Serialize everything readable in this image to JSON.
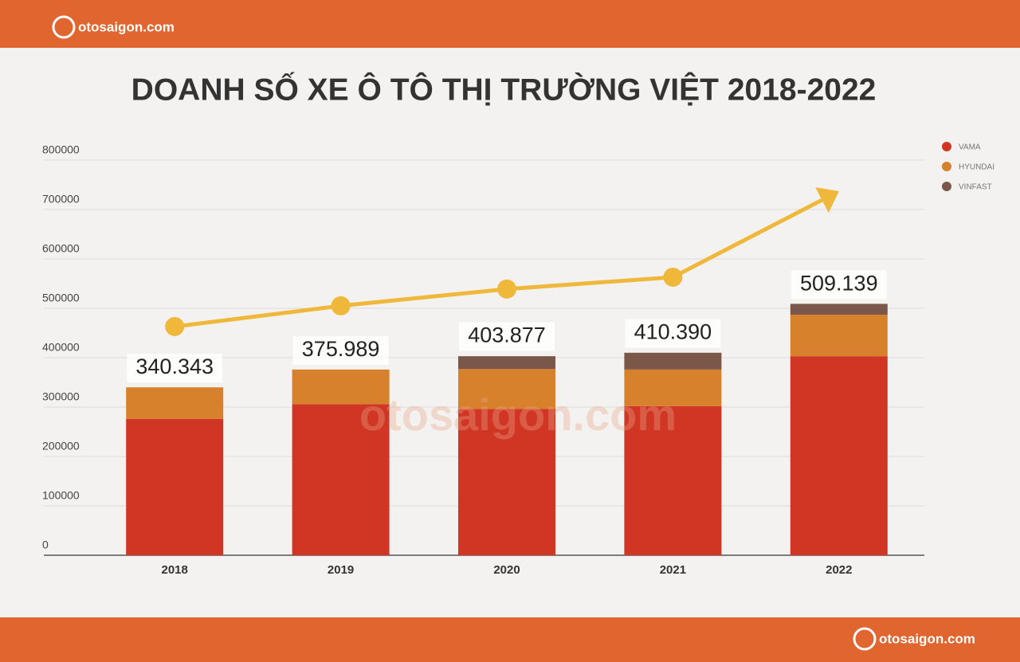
{
  "brand": "otosaigon.com",
  "chart_data": {
    "type": "stacked_bar",
    "title": "DOANH SỐ XE Ô TÔ THỊ TRƯỜNG VIỆT 2018-2022",
    "categories": [
      "2018",
      "2019",
      "2020",
      "2021",
      "2022"
    ],
    "series": [
      {
        "name": "VAMA",
        "color": "#d13524",
        "values": [
          276000,
          306000,
          296000,
          302000,
          403000
        ]
      },
      {
        "name": "HYUNDAI",
        "color": "#d8812c",
        "values": [
          64000,
          70000,
          81000,
          74000,
          84000
        ]
      },
      {
        "name": "VINFAST",
        "color": "#7b5749",
        "values": [
          0,
          0,
          26000,
          34000,
          22000
        ]
      }
    ],
    "totals": [
      340343,
      375989,
      403877,
      410390,
      509139
    ],
    "value_labels": [
      "340.343",
      "375.989",
      "403.877",
      "410.390",
      "509.139"
    ],
    "trend": {
      "color": "#f0b83a",
      "values": [
        463000,
        505000,
        539000,
        563000,
        737000
      ]
    },
    "ylim": [
      0,
      800000
    ],
    "yticks": [
      0,
      100000,
      200000,
      300000,
      400000,
      500000,
      600000,
      700000,
      800000
    ],
    "grid": true,
    "legend": "top-right"
  }
}
